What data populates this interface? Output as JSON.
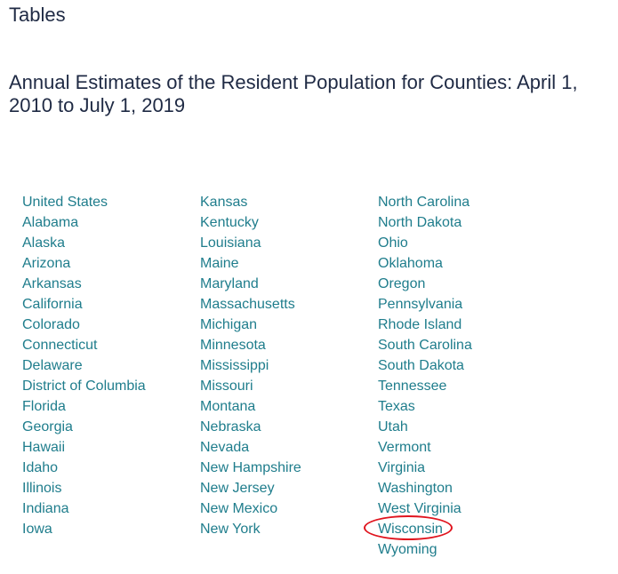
{
  "page": {
    "section_heading": "Tables",
    "table_title": "Annual Estimates of the Resident Population for Counties: April 1, 2010 to July 1, 2019"
  },
  "columns": [
    {
      "states": [
        "United States",
        "Alabama",
        "Alaska",
        "Arizona",
        "Arkansas",
        "California",
        "Colorado",
        "Connecticut",
        "Delaware",
        "District of Columbia",
        "Florida",
        "Georgia",
        "Hawaii",
        "Idaho",
        "Illinois",
        "Indiana",
        "Iowa"
      ]
    },
    {
      "states": [
        "Kansas",
        "Kentucky",
        "Louisiana",
        "Maine",
        "Maryland",
        "Massachusetts",
        "Michigan",
        "Minnesota",
        "Mississippi",
        "Missouri",
        "Montana",
        "Nebraska",
        "Nevada",
        "New Hampshire",
        "New Jersey",
        "New Mexico",
        "New York"
      ]
    },
    {
      "states": [
        "North Carolina",
        "North Dakota",
        "Ohio",
        "Oklahoma",
        "Oregon",
        "Pennsylvania",
        "Rhode Island",
        "South Carolina",
        "South Dakota",
        "Tennessee",
        "Texas",
        "Utah",
        "Vermont",
        "Virginia",
        "Washington",
        "West Virginia",
        "Wisconsin",
        "Wyoming"
      ]
    }
  ],
  "annotation": {
    "highlighted_item": "Wisconsin",
    "ring_color": "#e0141e"
  },
  "colors": {
    "heading": "#1f2a44",
    "link": "#1f7d8c"
  }
}
